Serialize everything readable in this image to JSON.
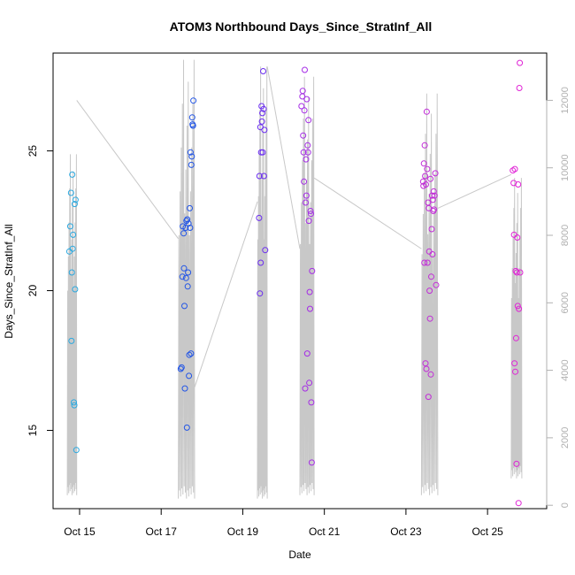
{
  "chart_data": {
    "type": "scatter",
    "title": "ATOM3 Northbound Days_Since_StratInf_All",
    "xlabel": "Date",
    "ylabel": "Days_Since_StratInf_All",
    "xlim": [
      14.35,
      26.45
    ],
    "ylim": [
      12.2,
      28.5
    ],
    "y2lim": [
      -100,
      13400
    ],
    "x_ticks": [
      {
        "value": 15,
        "label": "Oct 15"
      },
      {
        "value": 17,
        "label": "Oct 17"
      },
      {
        "value": 19,
        "label": "Oct 19"
      },
      {
        "value": 21,
        "label": "Oct 21"
      },
      {
        "value": 23,
        "label": "Oct 23"
      },
      {
        "value": 25,
        "label": "Oct 25"
      }
    ],
    "y_ticks": [
      {
        "value": 15,
        "label": "15"
      },
      {
        "value": 20,
        "label": "20"
      },
      {
        "value": 25,
        "label": "25"
      }
    ],
    "y2_ticks": [
      {
        "value": 0,
        "label": "0"
      },
      {
        "value": 2000,
        "label": "2000"
      },
      {
        "value": 4000,
        "label": "4000"
      },
      {
        "value": 6000,
        "label": "6000"
      },
      {
        "value": 8000,
        "label": "8000"
      },
      {
        "value": 10000,
        "label": "10000"
      },
      {
        "value": 12000,
        "label": "12000"
      }
    ],
    "colors": {
      "series_palette": [
        "#29a8e0",
        "#2255e6",
        "#6a2cf0",
        "#a52ce6",
        "#c22cd8",
        "#e024d6"
      ],
      "altitude_line": "#c8c8c8",
      "right_axis": "#b0b0b0"
    },
    "points": [
      {
        "x": 14.75,
        "y": 21.4,
        "c": 0
      },
      {
        "x": 14.77,
        "y": 22.3,
        "c": 0
      },
      {
        "x": 14.79,
        "y": 23.5,
        "c": 0
      },
      {
        "x": 14.8,
        "y": 18.2,
        "c": 0
      },
      {
        "x": 14.81,
        "y": 20.65,
        "c": 0
      },
      {
        "x": 14.82,
        "y": 24.15,
        "c": 0
      },
      {
        "x": 14.83,
        "y": 21.5,
        "c": 0
      },
      {
        "x": 14.84,
        "y": 22.0,
        "c": 0
      },
      {
        "x": 14.86,
        "y": 16.0,
        "c": 0
      },
      {
        "x": 14.87,
        "y": 15.9,
        "c": 0
      },
      {
        "x": 14.88,
        "y": 23.1,
        "c": 0
      },
      {
        "x": 14.89,
        "y": 20.05,
        "c": 0
      },
      {
        "x": 14.9,
        "y": 23.25,
        "c": 0
      },
      {
        "x": 14.92,
        "y": 14.3,
        "c": 0
      },
      {
        "x": 17.48,
        "y": 17.2,
        "c": 1
      },
      {
        "x": 17.5,
        "y": 17.25,
        "c": 1
      },
      {
        "x": 17.52,
        "y": 20.5,
        "c": 1
      },
      {
        "x": 17.53,
        "y": 22.3,
        "c": 1
      },
      {
        "x": 17.55,
        "y": 22.05,
        "c": 1
      },
      {
        "x": 17.56,
        "y": 20.8,
        "c": 1
      },
      {
        "x": 17.57,
        "y": 19.45,
        "c": 1
      },
      {
        "x": 17.58,
        "y": 16.5,
        "c": 1
      },
      {
        "x": 17.6,
        "y": 22.25,
        "c": 1
      },
      {
        "x": 17.61,
        "y": 20.45,
        "c": 1
      },
      {
        "x": 17.62,
        "y": 22.5,
        "c": 1
      },
      {
        "x": 17.63,
        "y": 15.1,
        "c": 1
      },
      {
        "x": 17.64,
        "y": 22.55,
        "c": 1
      },
      {
        "x": 17.65,
        "y": 20.15,
        "c": 1
      },
      {
        "x": 17.66,
        "y": 20.65,
        "c": 1
      },
      {
        "x": 17.67,
        "y": 22.4,
        "c": 1
      },
      {
        "x": 17.68,
        "y": 16.95,
        "c": 1
      },
      {
        "x": 17.69,
        "y": 17.7,
        "c": 1
      },
      {
        "x": 17.7,
        "y": 22.95,
        "c": 1
      },
      {
        "x": 17.71,
        "y": 22.25,
        "c": 1
      },
      {
        "x": 17.72,
        "y": 24.95,
        "c": 1
      },
      {
        "x": 17.73,
        "y": 17.75,
        "c": 1
      },
      {
        "x": 17.74,
        "y": 24.5,
        "c": 1
      },
      {
        "x": 17.75,
        "y": 24.8,
        "c": 1
      },
      {
        "x": 17.76,
        "y": 26.2,
        "c": 1
      },
      {
        "x": 17.77,
        "y": 25.95,
        "c": 1
      },
      {
        "x": 17.78,
        "y": 25.9,
        "c": 1
      },
      {
        "x": 17.79,
        "y": 26.8,
        "c": 1
      },
      {
        "x": 19.4,
        "y": 22.6,
        "c": 2
      },
      {
        "x": 19.41,
        "y": 24.1,
        "c": 2
      },
      {
        "x": 19.42,
        "y": 19.9,
        "c": 2
      },
      {
        "x": 19.43,
        "y": 25.85,
        "c": 2
      },
      {
        "x": 19.44,
        "y": 21.0,
        "c": 2
      },
      {
        "x": 19.45,
        "y": 24.95,
        "c": 2
      },
      {
        "x": 19.46,
        "y": 26.6,
        "c": 2
      },
      {
        "x": 19.47,
        "y": 26.05,
        "c": 2
      },
      {
        "x": 19.48,
        "y": 26.35,
        "c": 2
      },
      {
        "x": 19.49,
        "y": 24.95,
        "c": 2
      },
      {
        "x": 19.5,
        "y": 27.85,
        "c": 2
      },
      {
        "x": 19.51,
        "y": 26.5,
        "c": 2
      },
      {
        "x": 19.52,
        "y": 24.1,
        "c": 2
      },
      {
        "x": 19.53,
        "y": 25.75,
        "c": 2
      },
      {
        "x": 19.55,
        "y": 21.45,
        "c": 2
      },
      {
        "x": 20.44,
        "y": 26.6,
        "c": 3
      },
      {
        "x": 20.46,
        "y": 26.95,
        "c": 3
      },
      {
        "x": 20.47,
        "y": 27.15,
        "c": 3
      },
      {
        "x": 20.48,
        "y": 25.55,
        "c": 3
      },
      {
        "x": 20.49,
        "y": 24.95,
        "c": 3
      },
      {
        "x": 20.5,
        "y": 23.9,
        "c": 3
      },
      {
        "x": 20.51,
        "y": 26.45,
        "c": 3
      },
      {
        "x": 20.52,
        "y": 27.9,
        "c": 3
      },
      {
        "x": 20.53,
        "y": 16.5,
        "c": 3
      },
      {
        "x": 20.54,
        "y": 23.15,
        "c": 3
      },
      {
        "x": 20.55,
        "y": 24.7,
        "c": 3
      },
      {
        "x": 20.56,
        "y": 23.4,
        "c": 3
      },
      {
        "x": 20.57,
        "y": 26.85,
        "c": 3
      },
      {
        "x": 20.58,
        "y": 17.75,
        "c": 3
      },
      {
        "x": 20.59,
        "y": 25.2,
        "c": 3
      },
      {
        "x": 20.6,
        "y": 24.95,
        "c": 3
      },
      {
        "x": 20.61,
        "y": 26.1,
        "c": 3
      },
      {
        "x": 20.62,
        "y": 22.5,
        "c": 3
      },
      {
        "x": 20.63,
        "y": 16.7,
        "c": 3
      },
      {
        "x": 20.64,
        "y": 19.95,
        "c": 3
      },
      {
        "x": 20.65,
        "y": 19.35,
        "c": 3
      },
      {
        "x": 20.66,
        "y": 22.85,
        "c": 3
      },
      {
        "x": 20.67,
        "y": 22.75,
        "c": 3
      },
      {
        "x": 20.68,
        "y": 16.0,
        "c": 3
      },
      {
        "x": 20.69,
        "y": 13.85,
        "c": 3
      },
      {
        "x": 20.7,
        "y": 20.7,
        "c": 3
      },
      {
        "x": 23.42,
        "y": 23.9,
        "c": 4
      },
      {
        "x": 23.43,
        "y": 23.75,
        "c": 4
      },
      {
        "x": 23.44,
        "y": 24.55,
        "c": 4
      },
      {
        "x": 23.45,
        "y": 21.0,
        "c": 4
      },
      {
        "x": 23.46,
        "y": 25.2,
        "c": 4
      },
      {
        "x": 23.47,
        "y": 24.1,
        "c": 4
      },
      {
        "x": 23.48,
        "y": 17.4,
        "c": 4
      },
      {
        "x": 23.49,
        "y": 23.8,
        "c": 4
      },
      {
        "x": 23.5,
        "y": 17.2,
        "c": 4
      },
      {
        "x": 23.51,
        "y": 26.4,
        "c": 4
      },
      {
        "x": 23.52,
        "y": 24.35,
        "c": 4
      },
      {
        "x": 23.53,
        "y": 21.0,
        "c": 4
      },
      {
        "x": 23.54,
        "y": 23.15,
        "c": 4
      },
      {
        "x": 23.55,
        "y": 16.2,
        "c": 4
      },
      {
        "x": 23.56,
        "y": 22.95,
        "c": 4
      },
      {
        "x": 23.57,
        "y": 21.4,
        "c": 4
      },
      {
        "x": 23.58,
        "y": 20.0,
        "c": 4
      },
      {
        "x": 23.59,
        "y": 19.0,
        "c": 4
      },
      {
        "x": 23.6,
        "y": 24.0,
        "c": 4
      },
      {
        "x": 23.61,
        "y": 17.0,
        "c": 4
      },
      {
        "x": 23.62,
        "y": 20.5,
        "c": 4
      },
      {
        "x": 23.63,
        "y": 22.2,
        "c": 4
      },
      {
        "x": 23.64,
        "y": 23.4,
        "c": 4
      },
      {
        "x": 23.65,
        "y": 21.3,
        "c": 4
      },
      {
        "x": 23.66,
        "y": 23.25,
        "c": 4
      },
      {
        "x": 23.67,
        "y": 22.85,
        "c": 4
      },
      {
        "x": 23.68,
        "y": 23.55,
        "c": 4
      },
      {
        "x": 23.69,
        "y": 22.9,
        "c": 4
      },
      {
        "x": 23.7,
        "y": 23.4,
        "c": 4
      },
      {
        "x": 23.72,
        "y": 24.2,
        "c": 4
      },
      {
        "x": 23.74,
        "y": 20.2,
        "c": 4
      },
      {
        "x": 25.62,
        "y": 24.3,
        "c": 5
      },
      {
        "x": 25.64,
        "y": 23.85,
        "c": 5
      },
      {
        "x": 25.65,
        "y": 22.0,
        "c": 5
      },
      {
        "x": 25.66,
        "y": 17.4,
        "c": 5
      },
      {
        "x": 25.67,
        "y": 24.35,
        "c": 5
      },
      {
        "x": 25.68,
        "y": 17.1,
        "c": 5
      },
      {
        "x": 25.69,
        "y": 20.7,
        "c": 5
      },
      {
        "x": 25.7,
        "y": 18.3,
        "c": 5
      },
      {
        "x": 25.71,
        "y": 13.8,
        "c": 5
      },
      {
        "x": 25.72,
        "y": 20.65,
        "c": 5
      },
      {
        "x": 25.73,
        "y": 21.9,
        "c": 5
      },
      {
        "x": 25.74,
        "y": 19.45,
        "c": 5
      },
      {
        "x": 25.75,
        "y": 23.8,
        "c": 5
      },
      {
        "x": 25.76,
        "y": 12.4,
        "c": 5
      },
      {
        "x": 25.77,
        "y": 19.35,
        "c": 5
      },
      {
        "x": 25.78,
        "y": 27.25,
        "c": 5
      },
      {
        "x": 25.79,
        "y": 28.15,
        "c": 5
      },
      {
        "x": 25.8,
        "y": 20.65,
        "c": 5
      }
    ],
    "altitude_series": {
      "name": "Altitude",
      "axis": "right",
      "bursts": [
        {
          "start": 14.7,
          "end": 14.93,
          "low": 300,
          "high": 10400
        },
        {
          "start": 17.42,
          "end": 17.82,
          "low": 200,
          "high": 13200
        },
        {
          "start": 19.36,
          "end": 19.6,
          "low": 200,
          "high": 13000
        },
        {
          "start": 20.4,
          "end": 20.75,
          "low": 300,
          "high": 12700
        },
        {
          "start": 23.38,
          "end": 23.78,
          "low": 300,
          "high": 12200
        },
        {
          "start": 25.58,
          "end": 25.84,
          "low": 800,
          "high": 9700
        }
      ],
      "connectors": [
        [
          14.93,
          12000
        ],
        [
          17.42,
          7900
        ],
        [
          17.82,
          3500
        ],
        [
          19.36,
          9000
        ],
        [
          19.6,
          13000
        ],
        [
          20.4,
          7600
        ],
        [
          20.75,
          9700
        ],
        [
          23.38,
          7600
        ],
        [
          23.78,
          8800
        ],
        [
          25.58,
          9800
        ]
      ]
    }
  }
}
